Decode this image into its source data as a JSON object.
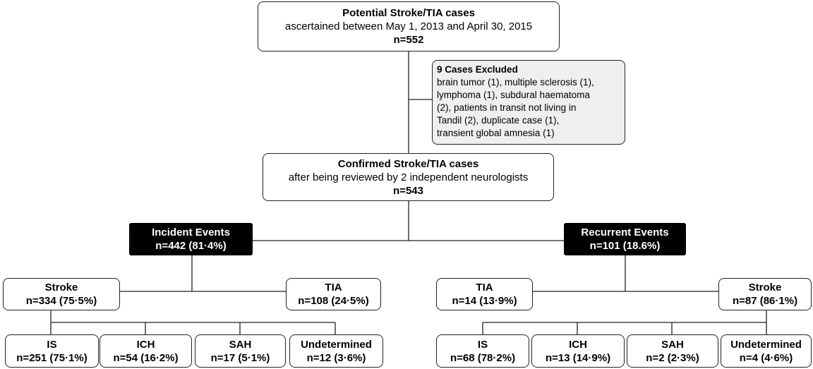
{
  "potential": {
    "title": "Potential Stroke/TIA cases",
    "subtitle": "ascertained between May 1, 2013 and April 30, 2015",
    "count": "n=552"
  },
  "excluded": {
    "title": "9 Cases Excluded",
    "lines": [
      "brain tumor (1), multiple sclerosis (1),",
      "lymphoma (1), subdural haematoma",
      "(2), patients in transit not living in",
      "Tandil (2), duplicate case (1),",
      "transient global amnesia (1)"
    ]
  },
  "confirmed": {
    "title": "Confirmed Stroke/TIA cases",
    "subtitle": "after being reviewed by 2 independent neurologists",
    "count": "n=543"
  },
  "incident": {
    "title": "Incident Events",
    "count": "n=442 (81·4%)",
    "branches": [
      {
        "title": "Stroke",
        "count": "n=334 (75·5%)"
      },
      {
        "title": "TIA",
        "count": "n=108 (24·5%)"
      }
    ],
    "subtypes": [
      {
        "title": "IS",
        "count": "n=251 (75·1%)"
      },
      {
        "title": "ICH",
        "count": "n=54 (16·2%)"
      },
      {
        "title": "SAH",
        "count": "n=17 (5·1%)"
      },
      {
        "title": "Undetermined",
        "count": "n=12 (3·6%)"
      }
    ]
  },
  "recurrent": {
    "title": "Recurrent Events",
    "count": "n=101 (18.6%)",
    "branches": [
      {
        "title": "TIA",
        "count": "n=14 (13·9%)"
      },
      {
        "title": "Stroke",
        "count": "n=87 (86·1%)"
      }
    ],
    "subtypes": [
      {
        "title": "IS",
        "count": "n=68 (78·2%)"
      },
      {
        "title": "ICH",
        "count": "n=13 (14·9%)"
      },
      {
        "title": "SAH",
        "count": "n=2 (2·3%)"
      },
      {
        "title": "Undetermined",
        "count": "n=4 (4·6%)"
      }
    ]
  }
}
